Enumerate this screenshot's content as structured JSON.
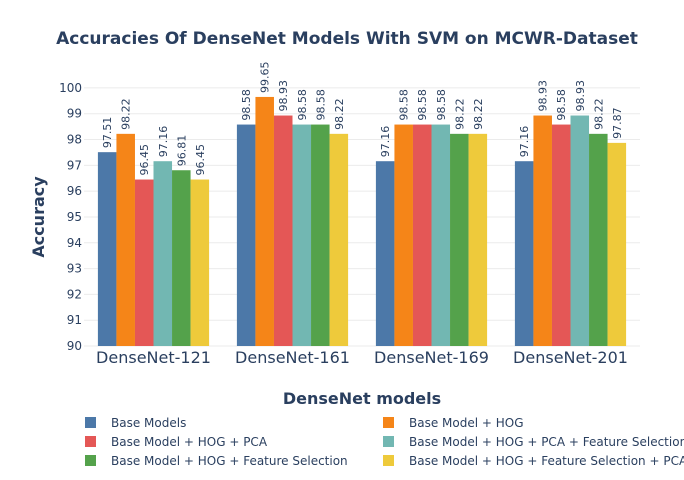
{
  "chart_data": {
    "type": "bar",
    "title": "Accuracies Of DenseNet Models With SVM on MCWR-Dataset",
    "xlabel": "DenseNet models",
    "ylabel": "Accuracy",
    "ylim": [
      90,
      100.5
    ],
    "yticks": [
      90,
      91,
      92,
      93,
      94,
      95,
      96,
      97,
      98,
      99,
      100
    ],
    "grid": true,
    "legend_position": "bottom",
    "categories": [
      "DenseNet-121",
      "DenseNet-161",
      "DenseNet-169",
      "DenseNet-201"
    ],
    "series": [
      {
        "name": "Base Models",
        "color": "#4c78a8",
        "values": [
          97.51,
          98.58,
          97.16,
          97.16
        ]
      },
      {
        "name": "Base Model + HOG",
        "color": "#f58518",
        "values": [
          98.22,
          99.65,
          98.58,
          98.93
        ]
      },
      {
        "name": "Base Model + HOG + PCA",
        "color": "#e45756",
        "values": [
          96.45,
          98.93,
          98.58,
          98.58
        ]
      },
      {
        "name": "Base Model + HOG + PCA + Feature Selection",
        "color": "#72b7b2",
        "values": [
          97.16,
          98.58,
          98.58,
          98.93
        ]
      },
      {
        "name": "Base Model + HOG + Feature Selection",
        "color": "#54a24b",
        "values": [
          96.81,
          98.58,
          98.22,
          98.22
        ]
      },
      {
        "name": "Base Model + HOG + Feature Selection + PCA",
        "color": "#eeca3b",
        "values": [
          96.45,
          98.22,
          98.22,
          97.87
        ]
      }
    ]
  }
}
